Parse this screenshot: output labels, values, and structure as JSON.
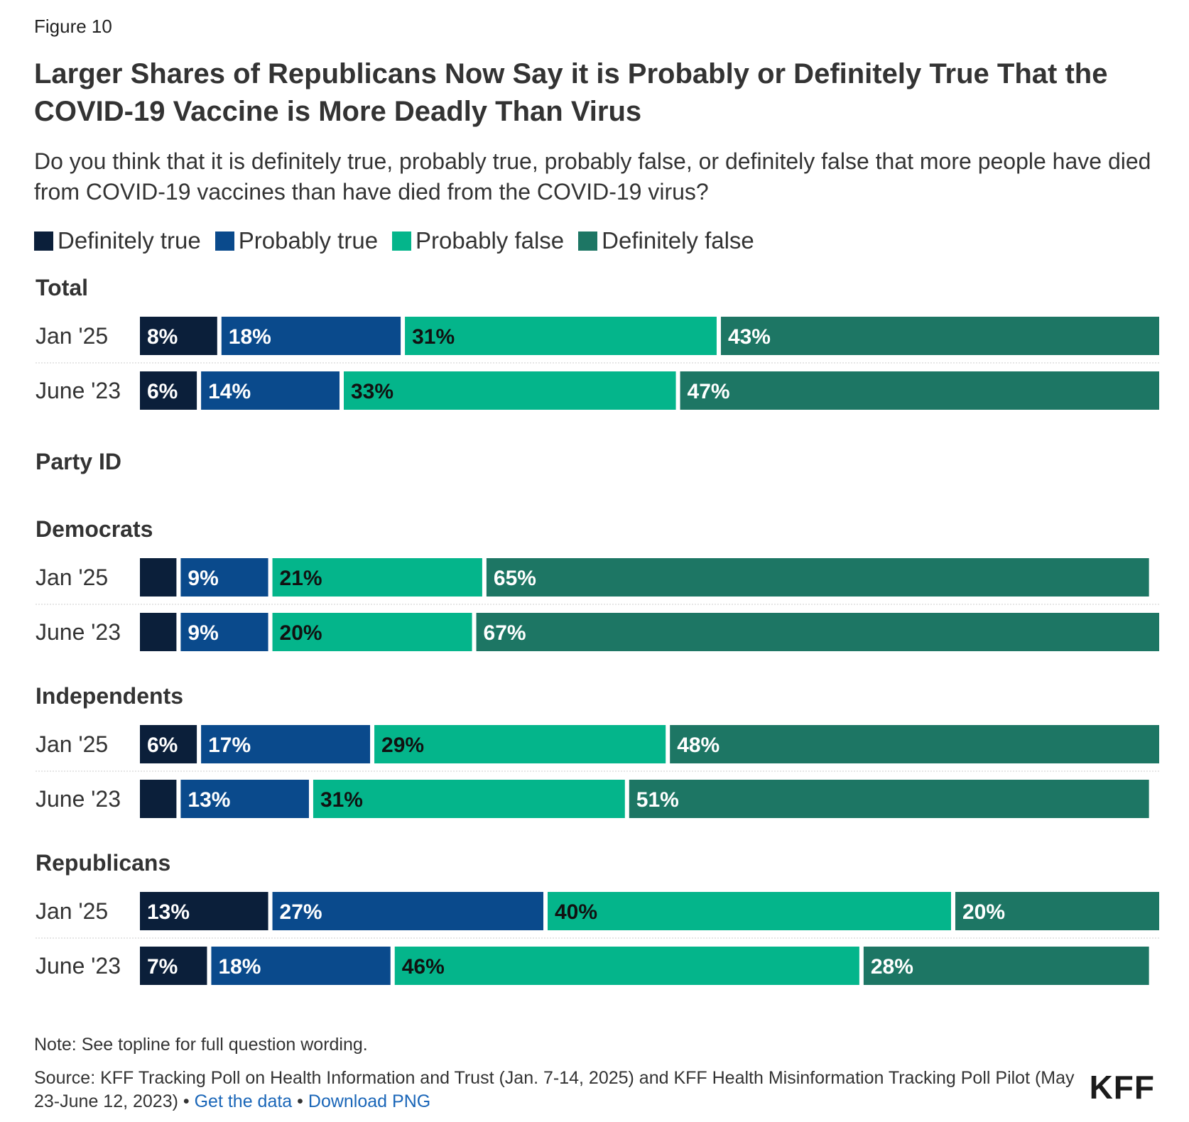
{
  "figure_label": "Figure 10",
  "title": "Larger Shares of Republicans Now Say it is Probably or Definitely True That the COVID-19 Vaccine is More Deadly Than Virus",
  "subtitle": "Do you think that it is definitely true, probably true, probably false, or definitely false that more people have died from COVID-19 vaccines than have died from the COVID-19 virus?",
  "legend": [
    {
      "label": "Definitely true",
      "color": "#0b1f3a"
    },
    {
      "label": "Probably true",
      "color": "#0a4a8c"
    },
    {
      "label": "Probably false",
      "color": "#04b58b"
    },
    {
      "label": "Definitely false",
      "color": "#1d7664"
    }
  ],
  "chart_data": {
    "type": "bar",
    "orientation": "horizontal-stacked",
    "title": "Larger Shares of Republicans Now Say it is Probably or Definitely True That the COVID-19 Vaccine is More Deadly Than Virus",
    "xlim": [
      0,
      100
    ],
    "series_names": [
      "Definitely true",
      "Probably true",
      "Probably false",
      "Definitely false"
    ],
    "groups": [
      {
        "label": "Total",
        "rows": [
          {
            "label": "Jan '25",
            "values": [
              8,
              18,
              31,
              43
            ],
            "labels": [
              "8%",
              "18%",
              "31%",
              "43%"
            ]
          },
          {
            "label": "June '23",
            "values": [
              6,
              14,
              33,
              47
            ],
            "labels": [
              "6%",
              "14%",
              "33%",
              "47%"
            ]
          }
        ]
      },
      {
        "label": "Party ID",
        "rows": []
      },
      {
        "label": "Democrats",
        "rows": [
          {
            "label": "Jan '25",
            "values": [
              4,
              9,
              21,
              65
            ],
            "labels": [
              "",
              "9%",
              "21%",
              "65%"
            ]
          },
          {
            "label": "June '23",
            "values": [
              4,
              9,
              20,
              67
            ],
            "labels": [
              "",
              "9%",
              "20%",
              "67%"
            ]
          }
        ]
      },
      {
        "label": "Independents",
        "rows": [
          {
            "label": "Jan '25",
            "values": [
              6,
              17,
              29,
              48
            ],
            "labels": [
              "6%",
              "17%",
              "29%",
              "48%"
            ]
          },
          {
            "label": "June '23",
            "values": [
              4,
              13,
              31,
              51
            ],
            "labels": [
              "",
              "13%",
              "31%",
              "51%"
            ]
          }
        ]
      },
      {
        "label": "Republicans",
        "rows": [
          {
            "label": "Jan '25",
            "values": [
              13,
              27,
              40,
              20
            ],
            "labels": [
              "13%",
              "27%",
              "40%",
              "20%"
            ]
          },
          {
            "label": "June '23",
            "values": [
              7,
              18,
              46,
              28
            ],
            "labels": [
              "7%",
              "18%",
              "46%",
              "28%"
            ]
          }
        ]
      }
    ]
  },
  "note": "Note: See topline for full question wording.",
  "source": {
    "text": "Source: KFF Tracking Poll on Health Information and Trust (Jan. 7-14, 2025) and KFF Health Misinformation Tracking Poll Pilot (May 23-June 12, 2023)",
    "separator": "•",
    "get_data": "Get the data",
    "download": "Download PNG"
  },
  "logo": "KFF"
}
